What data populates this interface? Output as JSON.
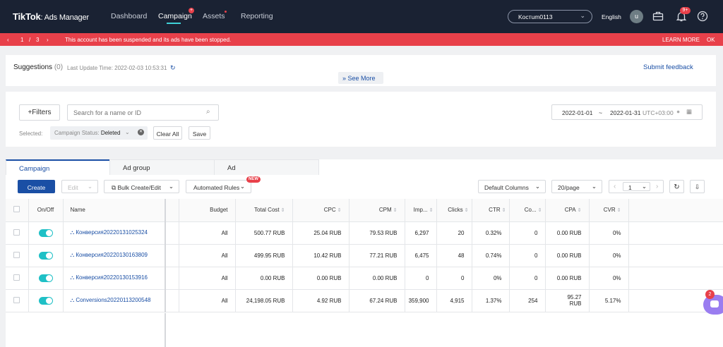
{
  "topbar": {
    "brand": "TikTok",
    "brand_sub": ": Ads Manager",
    "nav": [
      {
        "label": "Dashboard"
      },
      {
        "label": "Campaign"
      },
      {
        "label": "Assets"
      },
      {
        "label": "Reporting"
      }
    ],
    "account": "Kocтum0113",
    "language": "English",
    "avatar_letter": "u",
    "notifications": "9+"
  },
  "alert": {
    "page_current": "1",
    "page_sep": "/",
    "page_total": "3",
    "message": "This account has been suspended and its ads have been stopped.",
    "learn_more": "LEARN MORE",
    "ok": "OK"
  },
  "suggestions": {
    "title": "Suggestions",
    "count": "(0)",
    "last_update": "Last Update Time: 2022-02-03 10:53:31",
    "see_more": "See More",
    "feedback": "Submit feedback"
  },
  "filters": {
    "filters_button": "Filters",
    "search_placeholder": "Search for a name or ID",
    "date_start": "2022-01-01",
    "date_sep": "~",
    "date_end": "2022-01-31",
    "timezone": "UTC+03:00",
    "selected_label": "Selected:",
    "chip_key": "Campaign Status",
    "chip_value": "Deleted",
    "clear_all": "Clear All",
    "save": "Save"
  },
  "tabs": [
    {
      "label": "Campaign"
    },
    {
      "label": "Ad group"
    },
    {
      "label": "Ad"
    }
  ],
  "toolbar": {
    "create": "Create",
    "edit": "Edit",
    "bulk": "Bulk Create/Edit",
    "rules": "Automated Rules",
    "rules_badge": "NEW",
    "columns": "Default Columns",
    "per_page": "20/page",
    "page": "1"
  },
  "table": {
    "headers": [
      "On/Off",
      "Name",
      "Budget",
      "Total Cost",
      "CPC",
      "CPM",
      "Imp...",
      "Clicks",
      "CTR",
      "Co...",
      "CPA",
      "CVR"
    ],
    "rows": [
      {
        "name": "Конверсия20220131025324",
        "budget": "All",
        "cost": "500.77 RUB",
        "cpc": "25.04 RUB",
        "cpm": "79.53 RUB",
        "imp": "6,297",
        "clicks": "20",
        "ctr": "0.32%",
        "conv": "0",
        "cpa": "0.00 RUB",
        "cvr": "0%"
      },
      {
        "name": "Конверсия20220130163809",
        "budget": "All",
        "cost": "499.95 RUB",
        "cpc": "10.42 RUB",
        "cpm": "77.21 RUB",
        "imp": "6,475",
        "clicks": "48",
        "ctr": "0.74%",
        "conv": "0",
        "cpa": "0.00 RUB",
        "cvr": "0%"
      },
      {
        "name": "Конверсия20220130153916",
        "budget": "All",
        "cost": "0.00 RUB",
        "cpc": "0.00 RUB",
        "cpm": "0.00 RUB",
        "imp": "0",
        "clicks": "0",
        "ctr": "0%",
        "conv": "0",
        "cpa": "0.00 RUB",
        "cvr": "0%"
      },
      {
        "name": "Conversions20220113200548",
        "budget": "All",
        "cost": "24,198.05 RUB",
        "cpc": "4.92 RUB",
        "cpm": "67.24 RUB",
        "imp": "359,900",
        "clicks": "4,915",
        "ctr": "1.37%",
        "conv": "254",
        "cpa": "95.27 RUB",
        "cvr": "5.17%"
      }
    ]
  },
  "chat": {
    "badge": "2"
  }
}
